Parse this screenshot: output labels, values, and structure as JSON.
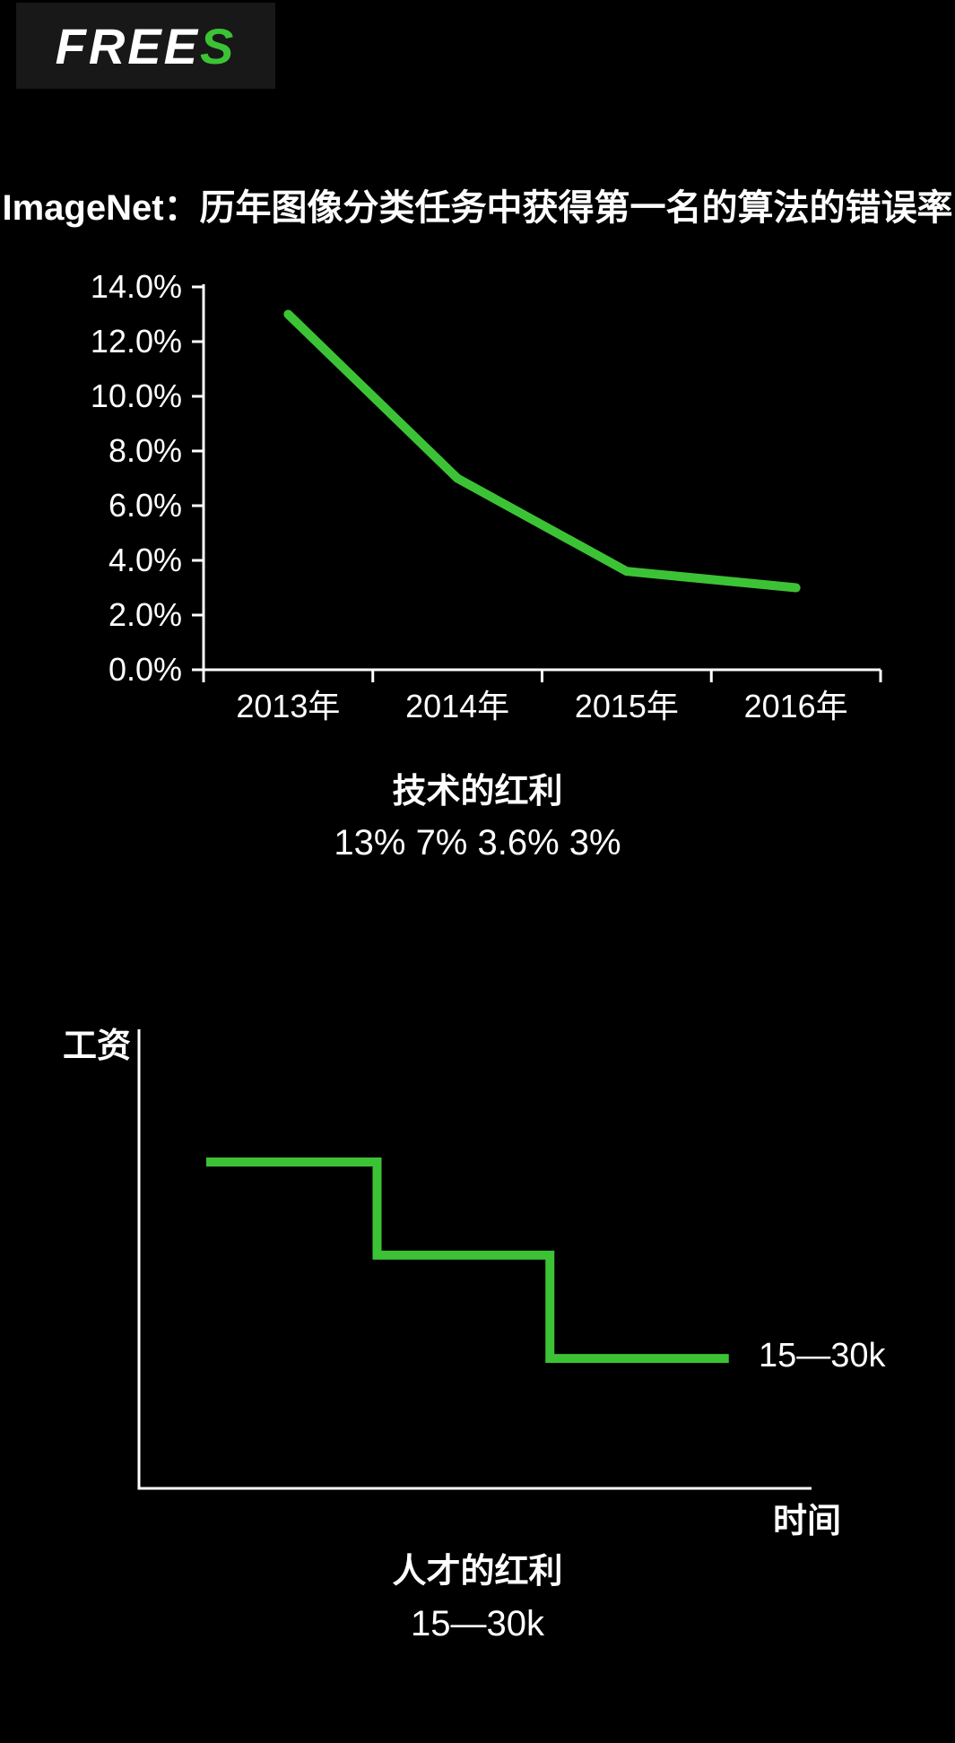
{
  "colors": {
    "background": "#000000",
    "logo_background": "#181818",
    "text": "#ffffff",
    "axis": "#ffffff",
    "accent_green": "#3cc335"
  },
  "logo": {
    "white_part": "FREE",
    "green_part": "S"
  },
  "chart_data": [
    {
      "type": "line",
      "title": "ImageNet：历年图像分类任务中获得第一名的算法的错误率",
      "categories": [
        "2013年",
        "2014年",
        "2015年",
        "2016年"
      ],
      "values": [
        13.0,
        7.0,
        3.6,
        3.0
      ],
      "ylim": [
        0,
        14
      ],
      "ytick_values": [
        0,
        2,
        4,
        6,
        8,
        10,
        12,
        14
      ],
      "ytick_labels": [
        "0.0%",
        "2.0%",
        "4.0%",
        "6.0%",
        "8.0%",
        "10.0%",
        "12.0%",
        "14.0%"
      ],
      "xlabel": "",
      "ylabel": "",
      "grid": false,
      "legend": "none",
      "line_color": "#3cc335",
      "caption": "技术的红利",
      "caption_values": "13% 7% 3.6% 3%"
    },
    {
      "type": "line-step",
      "title": "",
      "ylabel": "工资",
      "xlabel": "时间",
      "annotation": "15—30k",
      "steps_norm": [
        {
          "x0": 0.1,
          "x1": 0.354,
          "y": 0.289
        },
        {
          "x0": 0.354,
          "x1": 0.611,
          "y": 0.492
        },
        {
          "x0": 0.611,
          "x1": 0.877,
          "y": 0.717
        }
      ],
      "grid": false,
      "legend": "none",
      "line_color": "#3cc335",
      "caption": "人才的红利",
      "caption_values": "15—30k"
    }
  ]
}
